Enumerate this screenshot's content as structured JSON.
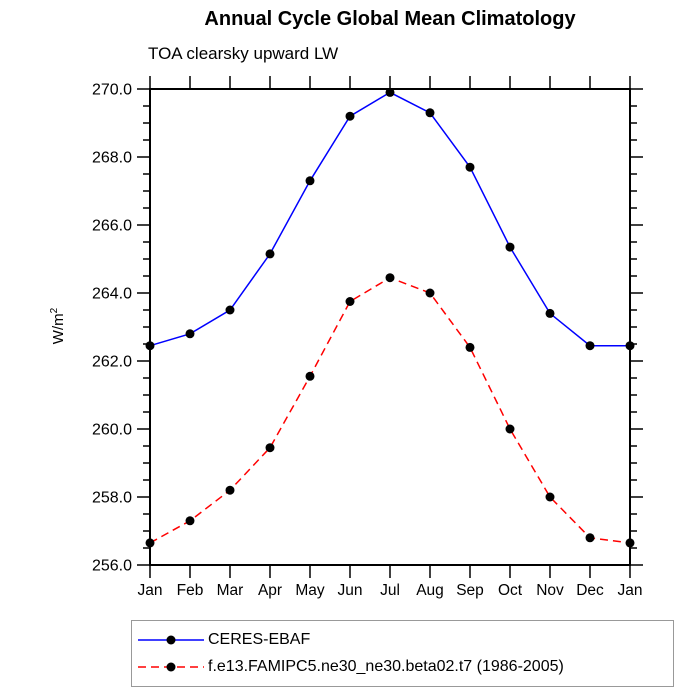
{
  "header": {
    "title": "Annual Cycle Global Mean Climatology",
    "subtitle": "TOA clearsky upward LW"
  },
  "axes": {
    "ylabel_base": "W/m",
    "ylabel_exponent": "2"
  },
  "legend": {
    "entries": [
      {
        "label": "CERES-EBAF",
        "color": "#0000ff",
        "style": "solid",
        "marker": "filled-circle",
        "marker_color": "#000000"
      },
      {
        "label": "f.e13.FAMIPC5.ne30_ne30.beta02.t7 (1986-2005)",
        "color": "#ff0000",
        "style": "dashed",
        "marker": "filled-circle",
        "marker_color": "#000000"
      }
    ]
  },
  "chart_data": {
    "type": "line",
    "title": "Annual Cycle Global Mean Climatology",
    "subtitle": "TOA clearsky upward LW",
    "xlabel": "",
    "ylabel": "W/m2",
    "categories": [
      "Jan",
      "Feb",
      "Mar",
      "Apr",
      "May",
      "Jun",
      "Jul",
      "Aug",
      "Sep",
      "Oct",
      "Nov",
      "Dec",
      "Jan"
    ],
    "series": [
      {
        "name": "CERES-EBAF",
        "color": "#0000ff",
        "line_style": "solid",
        "marker": "filled-circle",
        "marker_color": "#000000",
        "values": [
          262.45,
          262.8,
          263.5,
          265.15,
          267.3,
          269.2,
          269.9,
          269.3,
          267.7,
          265.35,
          263.4,
          262.45,
          262.45
        ]
      },
      {
        "name": "f.e13.FAMIPC5.ne30_ne30.beta02.t7 (1986-2005)",
        "color": "#ff0000",
        "line_style": "dashed",
        "marker": "filled-circle",
        "marker_color": "#000000",
        "values": [
          256.65,
          257.3,
          258.2,
          259.45,
          261.55,
          263.75,
          264.45,
          264.0,
          262.4,
          260.0,
          258.0,
          256.8,
          256.65
        ]
      }
    ],
    "ylim": [
      256.0,
      270.0
    ],
    "ytick_major_interval": 2.0,
    "ytick_minor_interval": 0.5,
    "ytick_label_format": "one-decimal",
    "grid": false,
    "legend_position": "bottom",
    "frame_color": "#000000",
    "background_color": "#ffffff"
  }
}
